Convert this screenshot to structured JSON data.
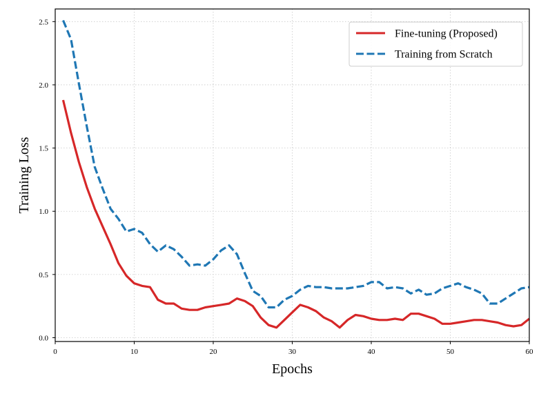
{
  "chart_data": {
    "type": "line",
    "title": "",
    "xlabel": "Epochs",
    "ylabel": "Training Loss",
    "xlim": [
      0,
      60
    ],
    "ylim": [
      -0.03,
      2.6
    ],
    "xticks": [
      0,
      10,
      20,
      30,
      40,
      50,
      60
    ],
    "xtick_labels": [
      "0",
      "10",
      "20",
      "30",
      "40",
      "50",
      "60"
    ],
    "yticks": [
      0.0,
      0.5,
      1.0,
      1.5,
      2.0,
      2.5
    ],
    "ytick_labels": [
      "0.0",
      "0.5",
      "1.0",
      "1.5",
      "2.0",
      "2.5"
    ],
    "grid": true,
    "legend_position": "top-right",
    "series": [
      {
        "name": "Fine-tuning (Proposed)",
        "color": "#d62728",
        "style": "solid",
        "x": [
          1,
          2,
          3,
          4,
          5,
          6,
          7,
          8,
          9,
          10,
          11,
          12,
          13,
          14,
          15,
          16,
          17,
          18,
          19,
          20,
          21,
          22,
          23,
          24,
          25,
          26,
          27,
          28,
          29,
          30,
          31,
          32,
          33,
          34,
          35,
          36,
          37,
          38,
          39,
          40,
          41,
          42,
          43,
          44,
          45,
          46,
          47,
          48,
          49,
          50,
          51,
          52,
          53,
          54,
          55,
          56,
          57,
          58,
          59,
          60
        ],
        "values": [
          1.88,
          1.62,
          1.39,
          1.19,
          1.02,
          0.88,
          0.74,
          0.59,
          0.49,
          0.43,
          0.41,
          0.4,
          0.3,
          0.27,
          0.27,
          0.23,
          0.22,
          0.22,
          0.24,
          0.25,
          0.26,
          0.27,
          0.31,
          0.29,
          0.25,
          0.16,
          0.1,
          0.08,
          0.14,
          0.2,
          0.26,
          0.24,
          0.21,
          0.16,
          0.13,
          0.08,
          0.14,
          0.18,
          0.17,
          0.15,
          0.14,
          0.14,
          0.15,
          0.14,
          0.19,
          0.19,
          0.17,
          0.15,
          0.11,
          0.11,
          0.12,
          0.13,
          0.14,
          0.14,
          0.13,
          0.12,
          0.1,
          0.09,
          0.1,
          0.15
        ]
      },
      {
        "name": "Training from Scratch",
        "color": "#1f77b4",
        "style": "dashed",
        "x": [
          1,
          2,
          3,
          4,
          5,
          6,
          7,
          8,
          9,
          10,
          11,
          12,
          13,
          14,
          15,
          16,
          17,
          18,
          19,
          20,
          21,
          22,
          23,
          24,
          25,
          26,
          27,
          28,
          29,
          30,
          31,
          32,
          33,
          34,
          35,
          36,
          37,
          38,
          39,
          40,
          41,
          42,
          43,
          44,
          45,
          46,
          47,
          48,
          49,
          50,
          51,
          52,
          53,
          54,
          55,
          56,
          57,
          58,
          59,
          60
        ],
        "values": [
          2.51,
          2.36,
          2.01,
          1.67,
          1.35,
          1.18,
          1.02,
          0.94,
          0.84,
          0.86,
          0.83,
          0.74,
          0.68,
          0.73,
          0.7,
          0.64,
          0.57,
          0.58,
          0.57,
          0.62,
          0.69,
          0.73,
          0.66,
          0.51,
          0.37,
          0.33,
          0.24,
          0.24,
          0.3,
          0.33,
          0.38,
          0.41,
          0.4,
          0.4,
          0.39,
          0.39,
          0.39,
          0.4,
          0.41,
          0.44,
          0.44,
          0.39,
          0.4,
          0.39,
          0.35,
          0.38,
          0.34,
          0.35,
          0.39,
          0.41,
          0.43,
          0.4,
          0.38,
          0.35,
          0.27,
          0.27,
          0.31,
          0.35,
          0.39,
          0.4
        ]
      }
    ]
  }
}
